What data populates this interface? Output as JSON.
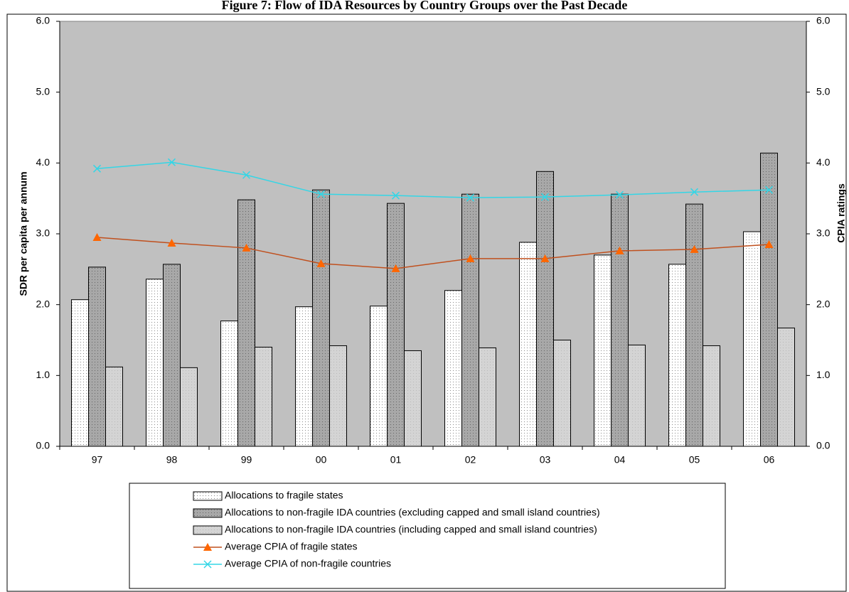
{
  "chart_data": {
    "type": "bar",
    "title": "Figure 7: Flow of IDA Resources by Country Groups over the Past Decade",
    "y_label": "SDR per capita per annum",
    "y2_label": "CPIA ratings",
    "categories": [
      "97",
      "98",
      "99",
      "00",
      "01",
      "02",
      "03",
      "04",
      "05",
      "06"
    ],
    "series": [
      {
        "name": "Allocations to fragile states",
        "type": "bar",
        "color": "#ffffff",
        "values": [
          2.07,
          2.36,
          1.77,
          1.97,
          1.98,
          2.2,
          2.88,
          2.7,
          2.57,
          3.03
        ]
      },
      {
        "name": "Allocations to non-fragile IDA countries (excluding capped and small island countries)",
        "type": "bar",
        "color": "#a8a8a8",
        "values": [
          2.53,
          2.57,
          3.48,
          3.62,
          3.43,
          3.56,
          3.88,
          3.56,
          3.42,
          4.14
        ]
      },
      {
        "name": "Allocations to non-fragile IDA countries (including capped and small island countries)",
        "type": "bar",
        "color": "#d4d4d4",
        "values": [
          1.12,
          1.11,
          1.4,
          1.42,
          1.35,
          1.39,
          1.5,
          1.43,
          1.42,
          1.67
        ]
      },
      {
        "name": "Average CPIA of fragile states",
        "type": "line",
        "axis": "y2",
        "color": "#c0501e",
        "marker": "triangle",
        "marker_color": "#ff6600",
        "values": [
          2.95,
          2.87,
          2.8,
          2.58,
          2.51,
          2.65,
          2.65,
          2.76,
          2.78,
          2.85
        ]
      },
      {
        "name": "Average CPIA of non-fragile countries",
        "type": "line",
        "axis": "y2",
        "color": "#33d6e6",
        "marker": "x",
        "marker_color": "#33d6e6",
        "values": [
          3.92,
          4.01,
          3.83,
          3.56,
          3.54,
          3.51,
          3.52,
          3.55,
          3.59,
          3.62
        ]
      }
    ],
    "ylim": [
      0,
      6
    ],
    "yticks": [
      {
        "value": 0,
        "label": "0.0"
      },
      {
        "value": 1,
        "label": "1.0"
      },
      {
        "value": 2,
        "label": "2.0"
      },
      {
        "value": 3,
        "label": "3.0"
      },
      {
        "value": 4,
        "label": "4.0"
      },
      {
        "value": 5,
        "label": "5.0"
      },
      {
        "value": 6,
        "label": "6.0"
      }
    ],
    "y2lim": [
      0,
      6
    ],
    "y2ticks": [
      {
        "value": 0,
        "label": "0.0"
      },
      {
        "value": 1,
        "label": "1.0"
      },
      {
        "value": 2,
        "label": "2.0"
      },
      {
        "value": 3,
        "label": "3.0"
      },
      {
        "value": 4,
        "label": "4.0"
      },
      {
        "value": 5,
        "label": "5.0"
      },
      {
        "value": 6,
        "label": "6.0"
      }
    ],
    "plot_background": "#c0c0c0",
    "legend": "bottom"
  }
}
